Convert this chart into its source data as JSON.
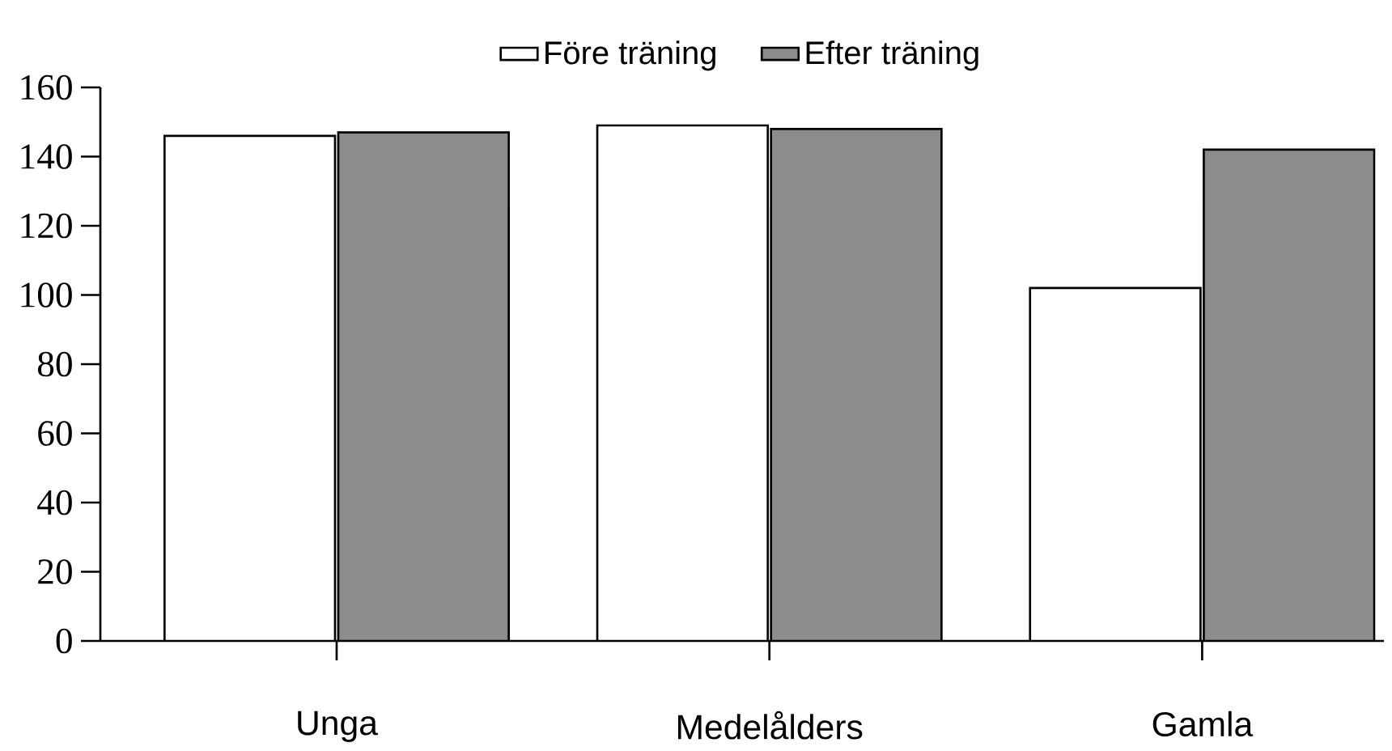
{
  "chart_data": {
    "type": "bar",
    "categories": [
      "Unga",
      "Medelålders",
      "Gamla"
    ],
    "series": [
      {
        "name": "Före träning",
        "color": "#ffffff",
        "values": [
          146,
          149,
          102
        ]
      },
      {
        "name": "Efter träning",
        "color": "#8c8c8c",
        "values": [
          147,
          148,
          142
        ]
      }
    ],
    "ylim": [
      0,
      160
    ],
    "yticks": [
      0,
      20,
      40,
      60,
      80,
      100,
      120,
      140,
      160
    ],
    "grid": false,
    "legend": "top"
  }
}
